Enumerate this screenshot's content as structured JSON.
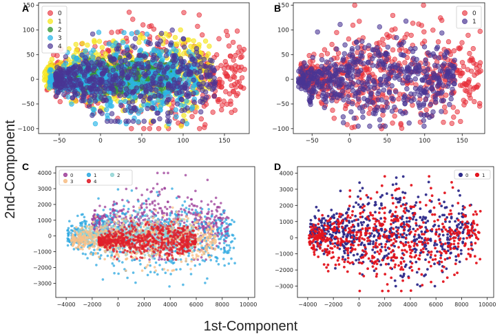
{
  "figure": {
    "xlabel": "1st-Component",
    "ylabel": "2nd-Component"
  },
  "chart_data": [
    {
      "panel": "A",
      "type": "scatter",
      "xlim": [
        -75,
        180
      ],
      "ylim": [
        -110,
        155
      ],
      "x_ticks": [
        -50,
        0,
        50,
        100,
        150
      ],
      "y_ticks": [
        -100,
        -50,
        0,
        50,
        100,
        150
      ],
      "x_tick_labels": [
        "−50",
        "0",
        "50",
        "100",
        "150"
      ],
      "y_tick_labels": [
        "−100",
        "−50",
        "0",
        "50",
        "100",
        "150"
      ],
      "legend_position": "top-left",
      "legend_columns": 1,
      "series": [
        {
          "name": "0",
          "color": "#e8303a",
          "opacity": 0.55,
          "spread_x": [
            -65,
            175
          ],
          "spread_y": [
            -100,
            150
          ],
          "center": [
            40,
            5
          ]
        },
        {
          "name": "1",
          "color": "#f5e51a",
          "opacity": 0.65,
          "spread_x": [
            -68,
            135
          ],
          "spread_y": [
            -95,
            100
          ],
          "center": [
            10,
            10
          ]
        },
        {
          "name": "2",
          "color": "#3a9a3a",
          "opacity": 0.7,
          "spread_x": [
            -40,
            90
          ],
          "spread_y": [
            -40,
            60
          ],
          "center": [
            20,
            5
          ]
        },
        {
          "name": "3",
          "color": "#29b6e8",
          "opacity": 0.65,
          "spread_x": [
            -62,
            120
          ],
          "spread_y": [
            -90,
            95
          ],
          "center": [
            20,
            0
          ]
        },
        {
          "name": "4",
          "color": "#4a3594",
          "opacity": 0.6,
          "spread_x": [
            -55,
            140
          ],
          "spread_y": [
            -85,
            125
          ],
          "center": [
            30,
            0
          ]
        }
      ]
    },
    {
      "panel": "B",
      "type": "scatter",
      "xlim": [
        -75,
        180
      ],
      "ylim": [
        -110,
        155
      ],
      "x_ticks": [
        -50,
        0,
        50,
        100,
        150
      ],
      "y_ticks": [
        -100,
        -50,
        0,
        50,
        100,
        150
      ],
      "x_tick_labels": [
        "−50",
        "0",
        "50",
        "100",
        "150"
      ],
      "y_tick_labels": [
        "−100",
        "−50",
        "0",
        "50",
        "100",
        "150"
      ],
      "legend_position": "top-right",
      "legend_columns": 1,
      "series": [
        {
          "name": "0",
          "color": "#e8303a",
          "opacity": 0.55,
          "spread_x": [
            -65,
            175
          ],
          "spread_y": [
            -100,
            150
          ],
          "center": [
            40,
            5
          ]
        },
        {
          "name": "1",
          "color": "#4a3594",
          "opacity": 0.6,
          "spread_x": [
            -68,
            140
          ],
          "spread_y": [
            -95,
            125
          ],
          "center": [
            20,
            0
          ]
        }
      ]
    },
    {
      "panel": "C",
      "type": "scatter",
      "xlim": [
        -4800,
        10500
      ],
      "ylim": [
        -3900,
        4400
      ],
      "x_ticks": [
        -4000,
        -2000,
        0,
        2000,
        4000,
        6000,
        8000,
        10000
      ],
      "y_ticks": [
        -3000,
        -2000,
        -1000,
        0,
        1000,
        2000,
        3000,
        4000
      ],
      "x_tick_labels": [
        "−4000",
        "−2000",
        "0",
        "2000",
        "4000",
        "6000",
        "8000",
        "10000"
      ],
      "y_tick_labels": [
        "−3000",
        "−2000",
        "−1000",
        "0",
        "1000",
        "2000",
        "3000",
        "4000"
      ],
      "legend_position": "top-left",
      "legend_columns": 3,
      "series": [
        {
          "name": "0",
          "color": "#9c3d98",
          "opacity": 0.75,
          "spread_x": [
            -2000,
            8500
          ],
          "spread_y": [
            -1500,
            4000
          ],
          "center": [
            3000,
            800
          ]
        },
        {
          "name": "1",
          "color": "#29a7e0",
          "opacity": 0.75,
          "spread_x": [
            -3900,
            9000
          ],
          "spread_y": [
            -3200,
            3000
          ],
          "center": [
            1500,
            0
          ]
        },
        {
          "name": "2",
          "color": "#8fd3d3",
          "opacity": 0.75,
          "spread_x": [
            -3000,
            6000
          ],
          "spread_y": [
            -1500,
            1500
          ],
          "center": [
            500,
            0
          ]
        },
        {
          "name": "3",
          "color": "#f7c08a",
          "opacity": 0.8,
          "spread_x": [
            -3600,
            7500
          ],
          "spread_y": [
            -2200,
            1800
          ],
          "center": [
            1000,
            -200
          ]
        },
        {
          "name": "4",
          "color": "#e01f2a",
          "opacity": 0.8,
          "spread_x": [
            -1500,
            6000
          ],
          "spread_y": [
            -1500,
            1200
          ],
          "center": [
            2000,
            -300
          ]
        }
      ]
    },
    {
      "panel": "D",
      "type": "scatter",
      "xlim": [
        -4800,
        10500
      ],
      "ylim": [
        -3700,
        4400
      ],
      "x_ticks": [
        -4000,
        -2000,
        0,
        2000,
        4000,
        6000,
        8000,
        10000
      ],
      "y_ticks": [
        -3000,
        -2000,
        -1000,
        0,
        1000,
        2000,
        3000,
        4000
      ],
      "x_tick_labels": [
        "−4000",
        "−2000",
        "0",
        "2000",
        "4000",
        "6000",
        "8000",
        "10000"
      ],
      "y_tick_labels": [
        "−3000",
        "−2000",
        "−1000",
        "0",
        "1000",
        "2000",
        "3000",
        "4000"
      ],
      "legend_position": "top-right",
      "legend_columns": 2,
      "series": [
        {
          "name": "0",
          "color": "#2d2a8a",
          "opacity": 0.95,
          "spread_x": [
            -3800,
            9000
          ],
          "spread_y": [
            -3000,
            4000
          ],
          "center": [
            1500,
            300
          ]
        },
        {
          "name": "1",
          "color": "#e3141e",
          "opacity": 0.95,
          "spread_x": [
            -3900,
            9500
          ],
          "spread_y": [
            -3300,
            3800
          ],
          "center": [
            1000,
            0
          ]
        }
      ]
    }
  ]
}
